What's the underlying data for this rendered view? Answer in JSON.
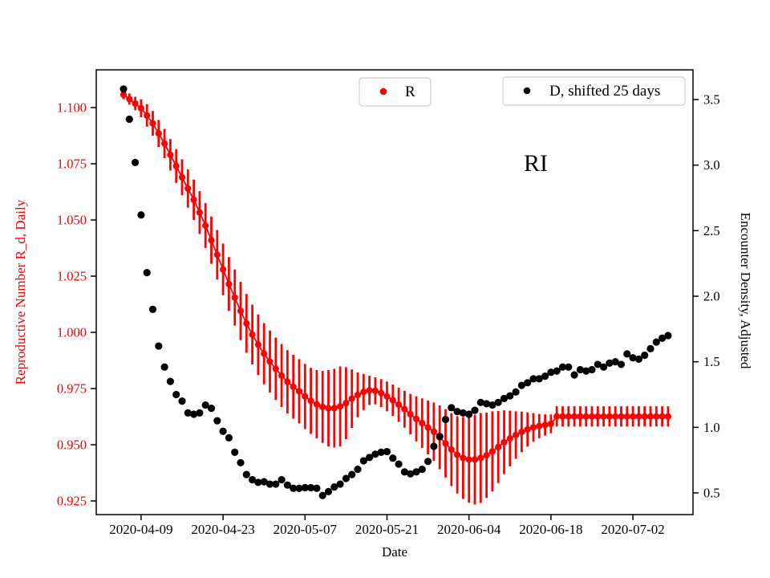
{
  "figure": {
    "annotation": "RI",
    "background": "#ffffff",
    "frame_color": "#000000"
  },
  "legends": [
    {
      "label": "R",
      "marker_color": "#ff0000"
    },
    {
      "label": "D, shifted 25 days",
      "marker_color": "#000000"
    }
  ],
  "chart_data": {
    "type": "scatter",
    "annotation": "RI",
    "xlabel": "Date",
    "x_tick_labels": [
      "2020-04-09",
      "2020-04-23",
      "2020-05-07",
      "2020-05-21",
      "2020-06-04",
      "2020-06-18",
      "2020-07-02"
    ],
    "start_date": "2020-04-06",
    "cadence": "daily",
    "grid": false,
    "left_axis": {
      "label": "Reproductive Number R_d, Daily",
      "color": "#ff0000",
      "ticks": [
        0.925,
        0.95,
        0.975,
        1.0,
        1.025,
        1.05,
        1.075,
        1.1
      ],
      "range": [
        0.919,
        1.1185
      ]
    },
    "right_axis": {
      "label": "Encounter Density, Adjusted",
      "color": "#000000",
      "ticks": [
        0.5,
        1.0,
        1.5,
        2.0,
        2.5,
        3.0,
        3.5
      ],
      "range": [
        0.328,
        3.727
      ]
    },
    "series": [
      {
        "name": "R",
        "axis": "left",
        "style": "errorbar-line-dot",
        "color": "#ff0000",
        "values": [
          1.1057,
          1.1038,
          1.1018,
          1.0997,
          1.0965,
          1.093,
          1.0885,
          1.084,
          1.079,
          1.074,
          1.069,
          1.064,
          1.059,
          1.0533,
          1.0475,
          1.041,
          1.0345,
          1.028,
          1.0215,
          1.0155,
          1.0095,
          1.004,
          0.999,
          0.9945,
          0.9905,
          0.987,
          0.9838,
          0.9808,
          0.978,
          0.9758,
          0.9738,
          0.9715,
          0.9695,
          0.968,
          0.9668,
          0.9662,
          0.9663,
          0.967,
          0.9685,
          0.9705,
          0.9722,
          0.9735,
          0.9742,
          0.974,
          0.973,
          0.9715,
          0.9698,
          0.9678,
          0.9658,
          0.9636,
          0.9615,
          0.9596,
          0.9577,
          0.9558,
          0.9533,
          0.9506,
          0.9478,
          0.9455,
          0.9441,
          0.9434,
          0.9434,
          0.9441,
          0.9453,
          0.947,
          0.949,
          0.9511,
          0.9528,
          0.9543,
          0.9557,
          0.9568,
          0.9577,
          0.9583,
          0.9588,
          0.9593,
          0.9626,
          0.9626,
          0.9626,
          0.9626,
          0.9626,
          0.9626,
          0.9626,
          0.9626,
          0.9626,
          0.9626,
          0.9626,
          0.9626,
          0.9626,
          0.9626,
          0.9626,
          0.9626,
          0.9626,
          0.9626,
          0.9626,
          0.9626
        ],
        "err": [
          0.002,
          0.0025,
          0.003,
          0.004,
          0.005,
          0.0055,
          0.006,
          0.0065,
          0.007,
          0.0075,
          0.008,
          0.0085,
          0.009,
          0.0095,
          0.01,
          0.0105,
          0.011,
          0.0115,
          0.012,
          0.0125,
          0.013,
          0.0131,
          0.0133,
          0.0135,
          0.0136,
          0.0138,
          0.0139,
          0.014,
          0.0141,
          0.0142,
          0.0143,
          0.0145,
          0.0147,
          0.0152,
          0.016,
          0.017,
          0.0175,
          0.0178,
          0.016,
          0.013,
          0.01,
          0.008,
          0.0065,
          0.006,
          0.0062,
          0.0066,
          0.007,
          0.0076,
          0.0082,
          0.009,
          0.01,
          0.011,
          0.012,
          0.013,
          0.0142,
          0.0152,
          0.0162,
          0.0172,
          0.0182,
          0.0192,
          0.02,
          0.02,
          0.019,
          0.0178,
          0.016,
          0.0142,
          0.0124,
          0.0106,
          0.009,
          0.0076,
          0.0064,
          0.0054,
          0.0047,
          0.0042,
          0.0045,
          0.0045,
          0.0045,
          0.0045,
          0.0045,
          0.0045,
          0.0045,
          0.0045,
          0.0045,
          0.0045,
          0.0045,
          0.0045,
          0.0045,
          0.0045,
          0.0045,
          0.0045,
          0.0045,
          0.0045,
          0.0045,
          0.0045
        ]
      },
      {
        "name": "D, shifted 25 days",
        "axis": "right",
        "style": "dot",
        "color": "#000000",
        "values": [
          3.58,
          3.35,
          3.02,
          2.62,
          2.18,
          1.9,
          1.62,
          1.46,
          1.35,
          1.25,
          1.2,
          1.11,
          1.1,
          1.11,
          1.17,
          1.145,
          1.05,
          0.97,
          0.92,
          0.81,
          0.73,
          0.64,
          0.6,
          0.58,
          0.585,
          0.567,
          0.567,
          0.6,
          0.56,
          0.535,
          0.535,
          0.54,
          0.54,
          0.535,
          0.48,
          0.51,
          0.545,
          0.567,
          0.61,
          0.64,
          0.68,
          0.745,
          0.77,
          0.795,
          0.81,
          0.815,
          0.765,
          0.72,
          0.66,
          0.645,
          0.66,
          0.68,
          0.74,
          0.855,
          0.93,
          1.06,
          1.15,
          1.12,
          1.11,
          1.1,
          1.13,
          1.19,
          1.18,
          1.17,
          1.19,
          1.22,
          1.24,
          1.27,
          1.32,
          1.34,
          1.37,
          1.37,
          1.39,
          1.42,
          1.43,
          1.46,
          1.46,
          1.4,
          1.44,
          1.43,
          1.44,
          1.48,
          1.46,
          1.49,
          1.5,
          1.48,
          1.56,
          1.53,
          1.52,
          1.55,
          1.6,
          1.65,
          1.68,
          1.7
        ]
      }
    ]
  }
}
